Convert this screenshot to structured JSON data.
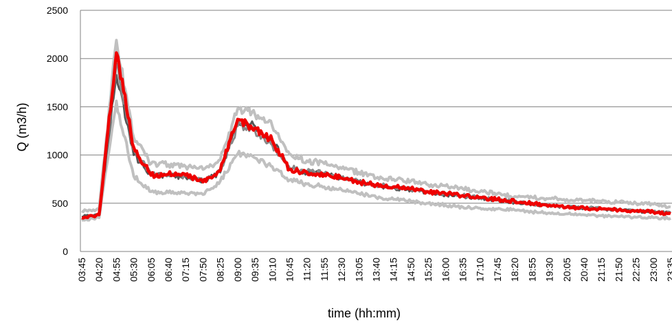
{
  "chart_data": {
    "type": "line",
    "xlabel": "time (hh:mm)",
    "ylabel": "Q (m3/h)",
    "ylim": [
      0,
      2500
    ],
    "yticks": [
      0,
      500,
      1000,
      1500,
      2000,
      2500
    ],
    "grid": "horizontal",
    "legend": "none",
    "x": [
      "03:45",
      "04:20",
      "04:55",
      "05:30",
      "06:05",
      "06:40",
      "07:15",
      "07:50",
      "08:25",
      "09:00",
      "09:35",
      "10:10",
      "10:45",
      "11:20",
      "11:55",
      "12:30",
      "13:05",
      "13:40",
      "14:15",
      "14:50",
      "15:25",
      "16:00",
      "16:35",
      "17:10",
      "17:45",
      "18:20",
      "18:55",
      "19:30",
      "20:05",
      "20:40",
      "21:15",
      "21:50",
      "22:25",
      "23:00",
      "23:35"
    ],
    "series": [
      {
        "color": "#c0c0c0",
        "width": 4,
        "values": [
          420,
          440,
          2190,
          1180,
          910,
          900,
          880,
          850,
          950,
          1480,
          1420,
          1300,
          1010,
          940,
          910,
          860,
          820,
          760,
          750,
          730,
          690,
          680,
          650,
          620,
          600,
          570,
          560,
          550,
          540,
          530,
          520,
          510,
          500,
          490,
          460
        ]
      },
      {
        "color": "#c0c0c0",
        "width": 4,
        "values": [
          320,
          350,
          1560,
          780,
          620,
          610,
          600,
          590,
          730,
          1010,
          970,
          880,
          740,
          700,
          670,
          640,
          600,
          560,
          540,
          520,
          500,
          480,
          460,
          450,
          440,
          430,
          410,
          400,
          390,
          380,
          370,
          360,
          355,
          350,
          345
        ]
      },
      {
        "color": "#555555",
        "width": 3,
        "values": [
          360,
          390,
          1830,
          1000,
          790,
          790,
          770,
          720,
          820,
          1320,
          1300,
          1150,
          860,
          820,
          800,
          760,
          720,
          680,
          660,
          640,
          610,
          590,
          570,
          550,
          530,
          510,
          490,
          470,
          460,
          450,
          440,
          430,
          420,
          410,
          400
        ]
      },
      {
        "color": "#888888",
        "width": 3,
        "values": [
          350,
          380,
          1950,
          1050,
          800,
          790,
          780,
          730,
          830,
          1300,
          1250,
          1100,
          870,
          830,
          810,
          770,
          730,
          690,
          670,
          650,
          620,
          600,
          580,
          560,
          540,
          515,
          495,
          475,
          465,
          455,
          445,
          435,
          425,
          415,
          405
        ]
      },
      {
        "color": "#ee0000",
        "width": 4.5,
        "values": [
          350,
          380,
          2060,
          1080,
          790,
          800,
          790,
          720,
          840,
          1370,
          1280,
          1150,
          850,
          820,
          800,
          760,
          720,
          690,
          670,
          650,
          620,
          600,
          580,
          560,
          540,
          520,
          500,
          480,
          460,
          450,
          440,
          430,
          420,
          410,
          390
        ]
      }
    ]
  }
}
